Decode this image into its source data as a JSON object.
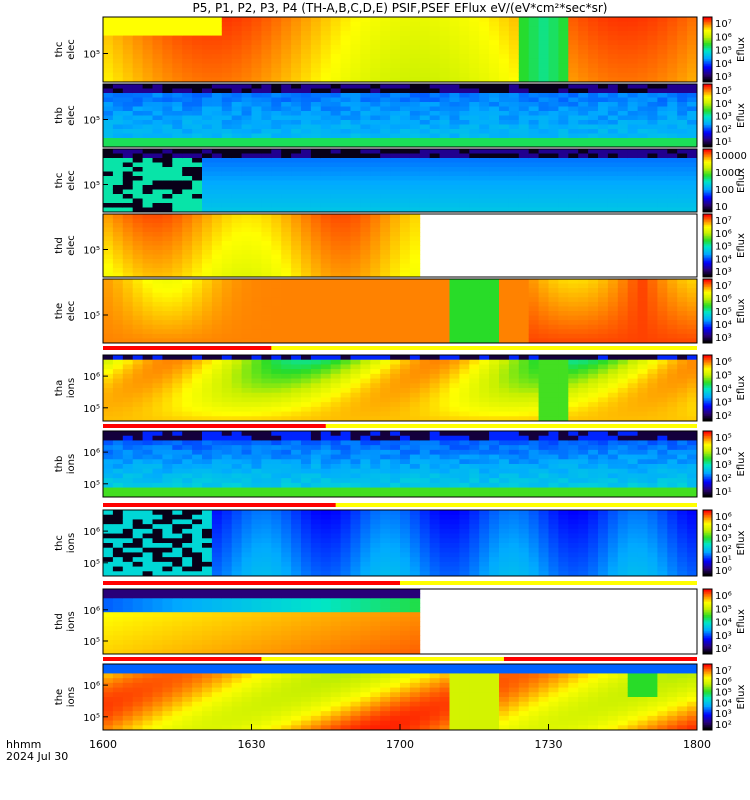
{
  "title": "P5, P1, P2, P3, P4 (TH-A,B,C,D,E) PSIF,PSEF EFlux eV/(eV*cm²*sec*sr)",
  "x_axis": {
    "row1": "hhmm",
    "row2": "2024 Jul 30",
    "ticks": [
      "1600",
      "1630",
      "1700",
      "1730",
      "1800"
    ]
  },
  "colorbar_unit": "Eflux",
  "chart_data": [
    {
      "type": "heatmap",
      "name": "thc elec",
      "ylabel": [
        "thc",
        "elec"
      ],
      "yticks": [
        "10⁵"
      ],
      "colorbar_ticks": [
        "10⁷",
        "10⁶",
        "10⁵",
        "10⁴",
        "10³"
      ],
      "data_end_hhmm": "1800"
    },
    {
      "type": "heatmap",
      "name": "thb elec",
      "ylabel": [
        "thb",
        "elec"
      ],
      "yticks": [
        "10⁵"
      ],
      "colorbar_ticks": [
        "10⁵",
        "10⁴",
        "10³",
        "10²",
        "10¹"
      ],
      "data_end_hhmm": "1800"
    },
    {
      "type": "heatmap",
      "name": "thc elec",
      "ylabel": [
        "thc",
        "elec"
      ],
      "yticks": [
        "10⁵"
      ],
      "colorbar_ticks": [
        "10000",
        "1000",
        "100",
        "10"
      ],
      "data_end_hhmm": "1800"
    },
    {
      "type": "heatmap",
      "name": "thd elec",
      "ylabel": [
        "thd",
        "elec"
      ],
      "yticks": [
        "10⁵"
      ],
      "colorbar_ticks": [
        "10⁷",
        "10⁶",
        "10⁵",
        "10⁴",
        "10³"
      ],
      "data_end_hhmm": "1704"
    },
    {
      "type": "heatmap",
      "name": "the elec",
      "ylabel": [
        "the",
        "elec"
      ],
      "yticks": [
        "10⁵"
      ],
      "colorbar_ticks": [
        "10⁷",
        "10⁶",
        "10⁵",
        "10⁴",
        "10³"
      ],
      "data_end_hhmm": "1800"
    },
    {
      "type": "heatmap",
      "name": "tha ions",
      "ylabel": [
        "tha",
        "ions"
      ],
      "yticks": [
        "10⁶",
        "10⁵"
      ],
      "colorbar_ticks": [
        "10⁶",
        "10⁵",
        "10⁴",
        "10³",
        "10²"
      ],
      "data_end_hhmm": "1800"
    },
    {
      "type": "heatmap",
      "name": "thb ions",
      "ylabel": [
        "thb",
        "ions"
      ],
      "yticks": [
        "10⁶",
        "10⁵"
      ],
      "colorbar_ticks": [
        "10⁵",
        "10⁴",
        "10³",
        "10²",
        "10¹"
      ],
      "data_end_hhmm": "1800"
    },
    {
      "type": "heatmap",
      "name": "thc ions",
      "ylabel": [
        "thc",
        "ions"
      ],
      "yticks": [
        "10⁶",
        "10⁵"
      ],
      "colorbar_ticks": [
        "10⁶",
        "10⁴",
        "10³",
        "10²",
        "10¹",
        "10⁰"
      ],
      "data_end_hhmm": "1800"
    },
    {
      "type": "heatmap",
      "name": "thd ions",
      "ylabel": [
        "thd",
        "ions"
      ],
      "yticks": [
        "10⁶",
        "10⁵"
      ],
      "colorbar_ticks": [
        "10⁶",
        "10⁵",
        "10⁴",
        "10³",
        "10²"
      ],
      "data_end_hhmm": "1704"
    },
    {
      "type": "heatmap",
      "name": "the ions",
      "ylabel": [
        "the",
        "ions"
      ],
      "yticks": [
        "10⁶",
        "10⁵"
      ],
      "colorbar_ticks": [
        "10⁷",
        "10⁶",
        "10⁵",
        "10⁴",
        "10³",
        "10²"
      ],
      "data_end_hhmm": "1800"
    }
  ],
  "status_bars": [
    {
      "after_panel": "the elec",
      "red_until_hhmm": "1634"
    },
    {
      "after_panel": "tha ions",
      "red_until_hhmm": "1645"
    },
    {
      "after_panel": "thb ions",
      "red_until_hhmm": "1647"
    },
    {
      "after_panel": "thc ions",
      "red_until_hhmm": "1700"
    },
    {
      "after_panel": "thd ions",
      "red_until_hhmm": "1632",
      "red_from_hhmm": "1721"
    }
  ],
  "colors": {
    "red": "#ff0000",
    "yellow": "#ffff00",
    "white": "#ffffff",
    "black": "#000000"
  }
}
